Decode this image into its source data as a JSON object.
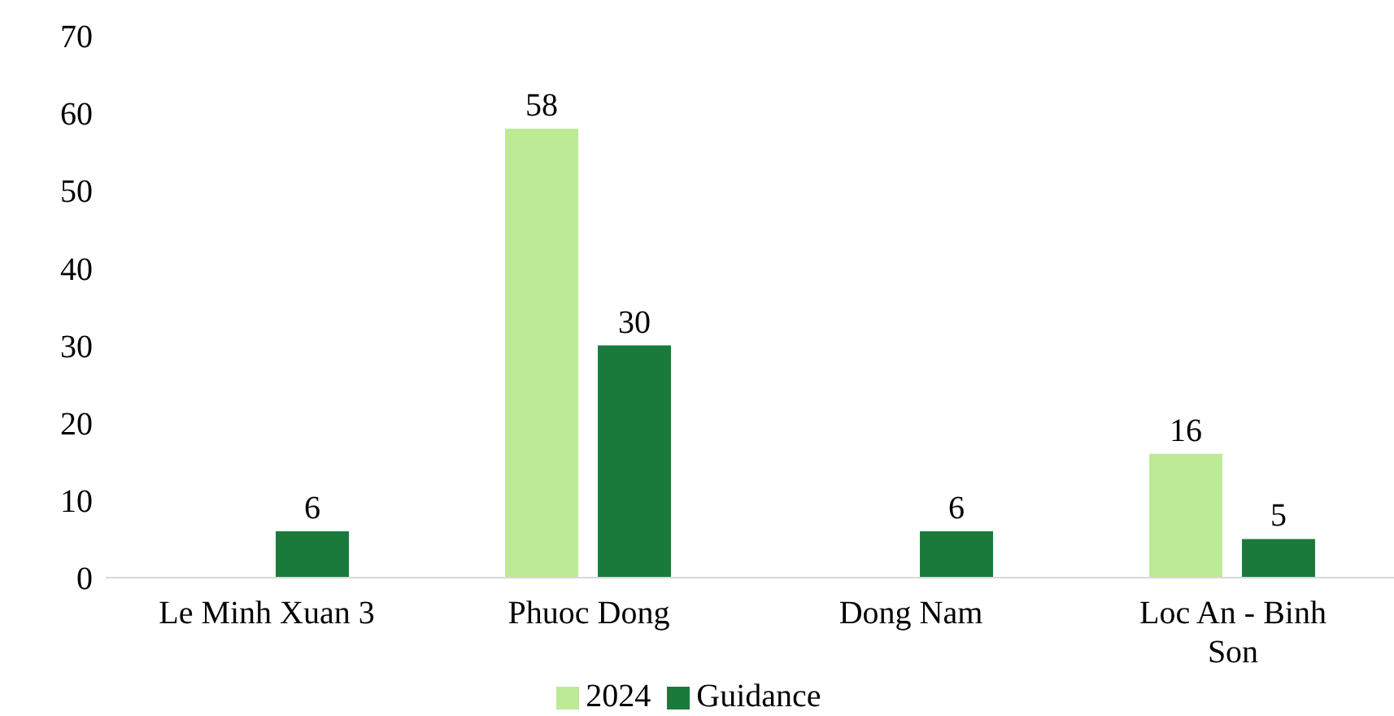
{
  "chart_data": {
    "type": "bar",
    "categories": [
      "Le Minh Xuan 3",
      "Phuoc Dong",
      "Dong Nam",
      "Loc An - Binh Son"
    ],
    "series": [
      {
        "name": "2024",
        "color": "#bdea95",
        "values": [
          null,
          58,
          null,
          16
        ]
      },
      {
        "name": "Guidance",
        "color": "#1a7a3c",
        "values": [
          6,
          30,
          6,
          5
        ]
      }
    ],
    "ylim": [
      0,
      70
    ],
    "yticks": [
      0,
      10,
      20,
      30,
      40,
      50,
      60,
      70
    ],
    "grid": false,
    "legend": "bottom",
    "data_labels": true
  }
}
